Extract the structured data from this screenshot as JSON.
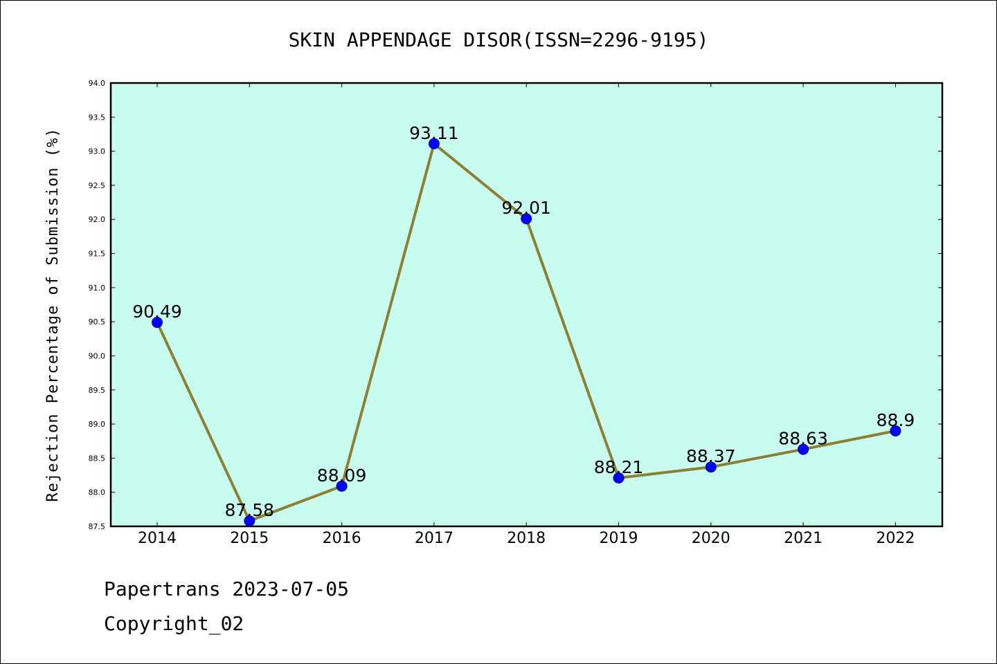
{
  "chart_data": {
    "type": "line",
    "title": "SKIN APPENDAGE DISOR(ISSN=2296-9195)",
    "xlabel": "",
    "ylabel": "Rejection Percentage of Submission (%)",
    "categories": [
      "2014",
      "2015",
      "2016",
      "2017",
      "2018",
      "2019",
      "2020",
      "2021",
      "2022"
    ],
    "values": [
      90.49,
      87.58,
      88.09,
      93.11,
      92.01,
      88.21,
      88.37,
      88.63,
      88.9
    ],
    "data_labels": [
      "90.49",
      "87.58",
      "88.09",
      "93.11",
      "92.01",
      "88.21",
      "88.37",
      "88.63",
      "88.9"
    ],
    "ylim": [
      87.5,
      94.0
    ],
    "yticks": [
      "87.5",
      "88.0",
      "88.5",
      "89.0",
      "89.5",
      "90.0",
      "90.5",
      "91.0",
      "91.5",
      "92.0",
      "92.5",
      "93.0",
      "93.5",
      "94.0"
    ],
    "grid": false,
    "colors": {
      "plot_background": "#c8fcef",
      "line": "#8b8036",
      "marker": "#0000ff"
    }
  },
  "footer": {
    "date_line": "Papertrans 2023-07-05",
    "copyright_line": "Copyright_02"
  }
}
